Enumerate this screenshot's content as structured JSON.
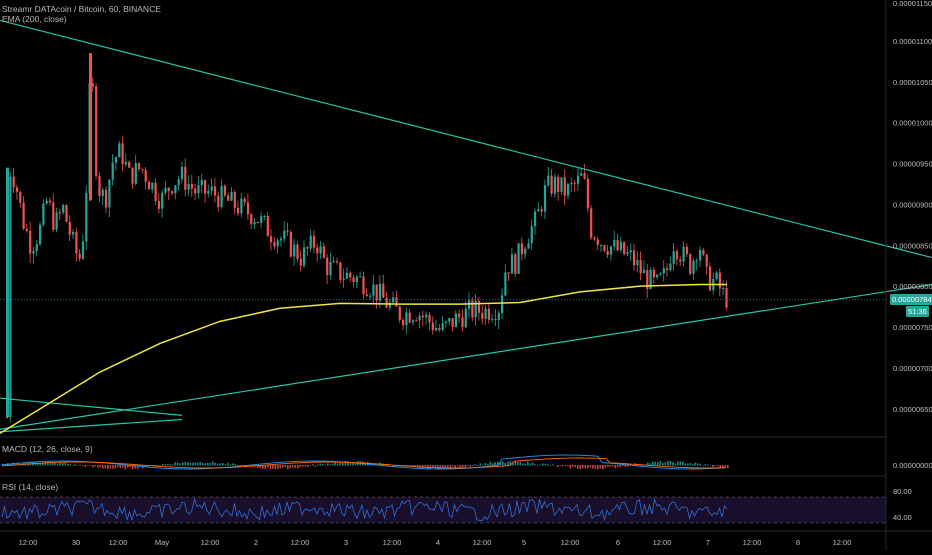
{
  "header": {
    "line1": "Streamr DATAcoin / Bitcoin, 60, BINANCE",
    "line2": "EMA (200, close)"
  },
  "macd_legend": "MACD (12, 26, close, 9)",
  "rsi_legend": "RSI (14, close)",
  "tags": {
    "last_price": "0.00000784",
    "countdown": "51:36"
  },
  "colors": {
    "background": "#000000",
    "up_candle": "#26a69a",
    "down_candle": "#ef5350",
    "ema": "#f0e442",
    "trendline": "#26c6a6",
    "macd_line": "#2196f3",
    "signal_line": "#ff6d00",
    "rsi_line": "#2f6fd6",
    "rsi_band": "#1a0f2a",
    "last_price_tag": "#26a69a",
    "countdown_tag": "#26a69a"
  },
  "chart_data": [
    {
      "type": "candlestick",
      "title": "Streamr DATAcoin / Bitcoin, 60, BINANCE",
      "indicators": [
        "EMA (200, close)"
      ],
      "y_ticks": [
        "0.00001150",
        "0.00001100",
        "0.00001050",
        "0.00001000",
        "0.00000950",
        "0.00000900",
        "0.00000850",
        "0.00000800",
        "0.00000750",
        "0.00000700",
        "0.00000650"
      ],
      "ylim": [
        6.18e-06,
        1.15e-05
      ],
      "x_ticks": [
        "12:00",
        "30",
        "12:00",
        "May",
        "12:00",
        "2",
        "12:00",
        "3",
        "12:00",
        "4",
        "12:00",
        "5",
        "12:00",
        "6",
        "12:00",
        "7",
        "12:00",
        "8",
        "12:00"
      ],
      "last_price": 7.84e-06,
      "ema_200": [
        [
          0,
          6.2e-06
        ],
        [
          40,
          6.5e-06
        ],
        [
          100,
          6.95e-06
        ],
        [
          160,
          7.3e-06
        ],
        [
          220,
          7.57e-06
        ],
        [
          280,
          7.73e-06
        ],
        [
          340,
          7.79e-06
        ],
        [
          400,
          7.78e-06
        ],
        [
          460,
          7.78e-06
        ],
        [
          520,
          7.8e-06
        ],
        [
          580,
          7.93e-06
        ],
        [
          640,
          8e-06
        ],
        [
          700,
          8.02e-06
        ],
        [
          727,
          8.02e-06
        ]
      ],
      "trendlines": [
        {
          "from": [
            0,
            1.125e-05
          ],
          "to": [
            932,
            8.35e-06
          ]
        },
        {
          "from": [
            0,
            6.25e-06
          ],
          "to": [
            932,
            8.02e-06
          ]
        },
        {
          "from": [
            0,
            6.63e-06
          ],
          "to": [
            182,
            6.42e-06
          ]
        },
        {
          "from": [
            0,
            6.22e-06
          ],
          "to": [
            182,
            6.37e-06
          ]
        }
      ]
    },
    {
      "type": "line",
      "title": "MACD (12, 26, close, 9)",
      "y_ticks": [
        "0.00000000"
      ],
      "series": [
        {
          "name": "MACD"
        },
        {
          "name": "Signal"
        }
      ]
    },
    {
      "type": "line",
      "title": "RSI (14, close)",
      "y_ticks": [
        "80.00",
        "40.00"
      ],
      "bands": [
        30,
        70
      ]
    }
  ]
}
